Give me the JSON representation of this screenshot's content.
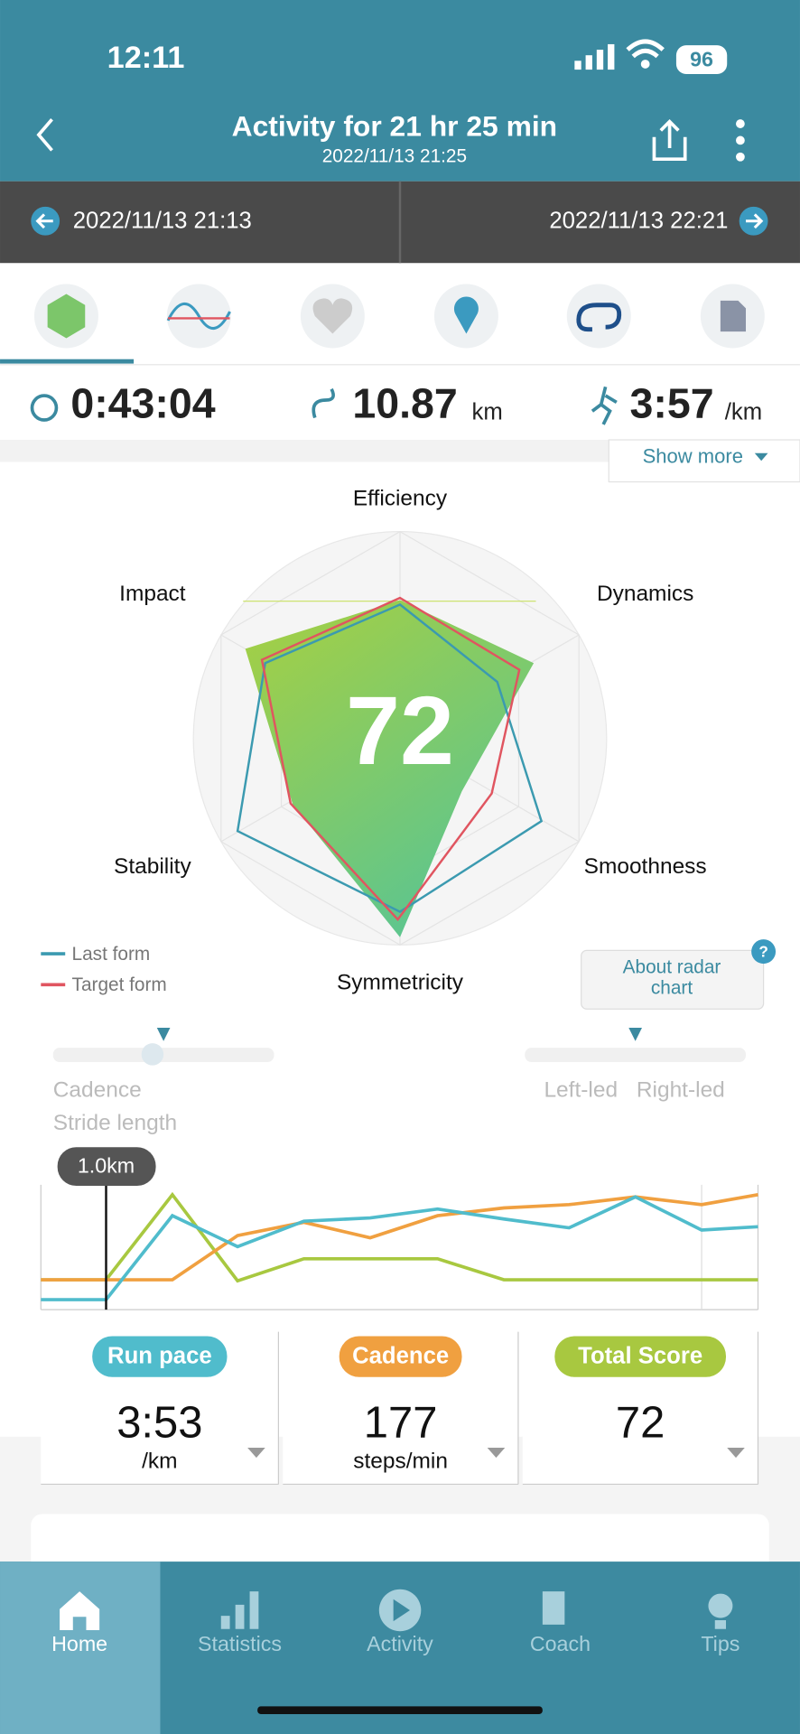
{
  "status_bar": {
    "time": "12:11",
    "battery": "96"
  },
  "header": {
    "title": "Activity for 21 hr 25 min",
    "subtitle": "2022/11/13 21:25"
  },
  "range": {
    "start": "2022/11/13 21:13",
    "end": "2022/11/13 22:21"
  },
  "summary": {
    "duration": "0:43:04",
    "distance": "10.87",
    "distance_unit": "km",
    "pace": "3:57",
    "pace_unit": "/km",
    "show_more": "Show more"
  },
  "radar": {
    "score": "72",
    "axes": [
      "Efficiency",
      "Dynamics",
      "Smoothness",
      "Symmetricity",
      "Stability",
      "Impact"
    ],
    "legend": [
      "Last form",
      "Target form"
    ],
    "about": [
      "About radar",
      "chart"
    ]
  },
  "sliders": {
    "left": [
      "Cadence",
      "Stride length"
    ],
    "right": [
      "Left-led",
      "Right-led"
    ]
  },
  "chart_marker": "1.0km",
  "metrics": [
    {
      "name": "Run pace",
      "value": "3:53",
      "unit": "/km"
    },
    {
      "name": "Cadence",
      "value": "177",
      "unit": "steps/min"
    },
    {
      "name": "Total Score",
      "value": "72"
    }
  ],
  "tabs": [
    "Home",
    "Statistics",
    "Activity",
    "Coach",
    "Tips"
  ]
}
